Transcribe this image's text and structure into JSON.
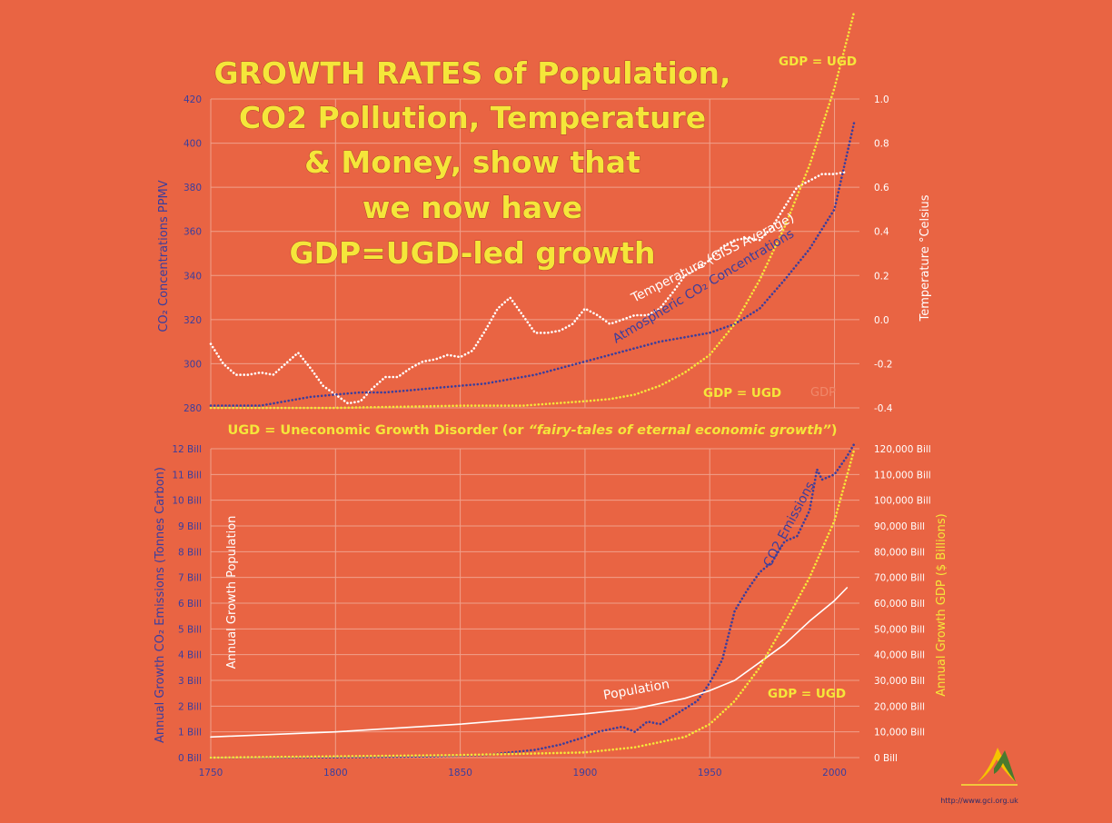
{
  "title_lines": [
    "GROWTH RATES of Population,",
    "CO2 Pollution, Temperature",
    "& Money, show that",
    "we now have",
    "GDP=UGD-led growth"
  ],
  "ugd_note": {
    "prefix": "UGD = Uneconomic Growth Disorder (or ",
    "italic": "“fairy-tales of eternal economic growth”",
    "suffix": ")"
  },
  "website": "http://www.gci.org.uk",
  "colors": {
    "background": "#E96443",
    "axis_blue": "#3A3E9E",
    "gdp_yellow": "#F5E63A",
    "white": "#FFFFFF",
    "grid": "#F0A08A"
  },
  "chart_data": [
    {
      "type": "line",
      "panel": "top",
      "x_ticks": [],
      "ylabel_left": "CO₂ Concentrations PPMV",
      "ylabel_right": "Temperature °Celsius",
      "ylim_left": [
        280,
        420
      ],
      "ylim_right": [
        -0.4,
        1.0
      ],
      "yticks_left": [
        "280",
        "300",
        "320",
        "340",
        "360",
        "380",
        "400",
        "420"
      ],
      "yticks_right": [
        "-0.4",
        "-0.2",
        "0.0",
        "0.2",
        "0.4",
        "0.6",
        "0.8",
        "1.0"
      ],
      "series": [
        {
          "name": "Temperature (GISS Average)",
          "axis": "right",
          "color": "white",
          "style": "dotted",
          "x": [
            1750,
            1755,
            1760,
            1765,
            1770,
            1775,
            1780,
            1785,
            1790,
            1795,
            1800,
            1805,
            1810,
            1815,
            1820,
            1825,
            1830,
            1835,
            1840,
            1845,
            1850,
            1855,
            1860,
            1865,
            1870,
            1875,
            1880,
            1885,
            1890,
            1895,
            1900,
            1905,
            1910,
            1915,
            1920,
            1925,
            1930,
            1935,
            1940,
            1945,
            1950,
            1955,
            1960,
            1965,
            1970,
            1975,
            1980,
            1985,
            1990,
            1995,
            2000,
            2005
          ],
          "values": [
            -0.11,
            -0.2,
            -0.25,
            -0.25,
            -0.24,
            -0.25,
            -0.2,
            -0.15,
            -0.22,
            -0.3,
            -0.34,
            -0.38,
            -0.37,
            -0.31,
            -0.26,
            -0.26,
            -0.22,
            -0.19,
            -0.18,
            -0.16,
            -0.17,
            -0.14,
            -0.05,
            0.05,
            0.1,
            0.02,
            -0.06,
            -0.06,
            -0.05,
            -0.02,
            0.05,
            0.02,
            -0.02,
            0.0,
            0.02,
            0.02,
            0.05,
            0.12,
            0.2,
            0.23,
            0.27,
            0.33,
            0.36,
            0.37,
            0.36,
            0.42,
            0.51,
            0.6,
            0.63,
            0.66,
            0.66,
            0.67
          ]
        },
        {
          "name": "Atmospheric CO₂ Concentrations",
          "axis": "left",
          "color": "blue",
          "style": "dotted",
          "x": [
            1750,
            1760,
            1770,
            1780,
            1790,
            1800,
            1810,
            1820,
            1830,
            1840,
            1850,
            1860,
            1870,
            1880,
            1890,
            1900,
            1910,
            1920,
            1930,
            1940,
            1950,
            1960,
            1970,
            1980,
            1990,
            2000,
            2008
          ],
          "values": [
            281,
            281,
            281,
            283,
            285,
            286,
            287,
            287,
            288,
            289,
            290,
            291,
            293,
            295,
            298,
            301,
            304,
            307,
            310,
            312,
            314,
            318,
            325,
            338,
            352,
            370,
            410
          ]
        },
        {
          "name": "GDP = UGD",
          "axis": "left",
          "color": "yellow",
          "style": "dotted",
          "x": [
            1750,
            1800,
            1850,
            1875,
            1900,
            1910,
            1920,
            1930,
            1940,
            1950,
            1960,
            1970,
            1980,
            1990,
            2000,
            2008
          ],
          "values": [
            280,
            280,
            281,
            281,
            283,
            284,
            286,
            290,
            296,
            304,
            318,
            338,
            362,
            390,
            425,
            460
          ]
        }
      ],
      "labels": [
        "Temperature (GISS Average)",
        "Atmospheric CO₂ Concentrations",
        "GDP = UGD",
        "GDP = UGD",
        "GDP"
      ]
    },
    {
      "type": "line",
      "panel": "bottom",
      "x_ticks": [
        "1750",
        "1800",
        "1850",
        "1900",
        "1950",
        "2000"
      ],
      "ylabel_left": "Annual Growth CO₂ Emissions (Tonnes Carbon)",
      "ylabel_left_inner": "Annual Growth Population",
      "ylabel_right": "Annual Growth GDP ($ Billions)",
      "ylim_left": [
        0,
        12
      ],
      "ylim_right": [
        0,
        120000
      ],
      "yticks_left": [
        "0 Bill",
        "1 Bill",
        "2 Bill",
        "3 Bill",
        "4 Bill",
        "5 Bill",
        "6 Bill",
        "7 Bill",
        "8 Bill",
        "9 Bill",
        "10 Bill",
        "11 Bill",
        "12 Bill"
      ],
      "yticks_right": [
        "0 Bill",
        "10,000 Bill",
        "20,000 Bill",
        "30,000 Bill",
        "40,000 Bill",
        "50,000 Bill",
        "60,000 Bill",
        "70,000 Bill",
        "80,000 Bill",
        "90,000 Bill",
        "100,000 Bill",
        "110,000 Bill",
        "120,000 Bill"
      ],
      "series": [
        {
          "name": "CO2 Emissions",
          "axis": "left",
          "color": "blue",
          "style": "dotted",
          "x": [
            1750,
            1800,
            1840,
            1860,
            1870,
            1880,
            1890,
            1900,
            1905,
            1910,
            1915,
            1920,
            1925,
            1930,
            1935,
            1940,
            1945,
            1950,
            1955,
            1960,
            1965,
            1970,
            1975,
            1980,
            1985,
            1990,
            1993,
            1995,
            2000,
            2005,
            2008
          ],
          "values": [
            0.0,
            0.01,
            0.05,
            0.1,
            0.2,
            0.3,
            0.5,
            0.8,
            1.0,
            1.1,
            1.2,
            1.0,
            1.4,
            1.3,
            1.6,
            1.9,
            2.2,
            2.9,
            3.8,
            5.7,
            6.5,
            7.2,
            7.6,
            8.4,
            8.6,
            9.6,
            11.2,
            10.8,
            11.0,
            11.7,
            12.2
          ]
        },
        {
          "name": "Population",
          "axis": "left",
          "color": "white",
          "style": "solid",
          "x": [
            1750,
            1800,
            1850,
            1900,
            1920,
            1940,
            1950,
            1960,
            1970,
            1980,
            1990,
            2000,
            2005
          ],
          "values": [
            0.8,
            1.0,
            1.3,
            1.7,
            1.9,
            2.3,
            2.6,
            3.0,
            3.7,
            4.4,
            5.3,
            6.1,
            6.6
          ]
        },
        {
          "name": "GDP = UGD",
          "axis": "right",
          "color": "yellow",
          "style": "dotted",
          "x": [
            1750,
            1800,
            1850,
            1900,
            1920,
            1940,
            1950,
            1960,
            1970,
            1980,
            1990,
            2000,
            2008
          ],
          "values": [
            0,
            500,
            1000,
            2000,
            4000,
            8000,
            13000,
            22000,
            35000,
            52000,
            70000,
            92000,
            120000
          ]
        }
      ],
      "labels": [
        "CO2 Emissions",
        "Population",
        "GDP = UGD"
      ]
    }
  ]
}
